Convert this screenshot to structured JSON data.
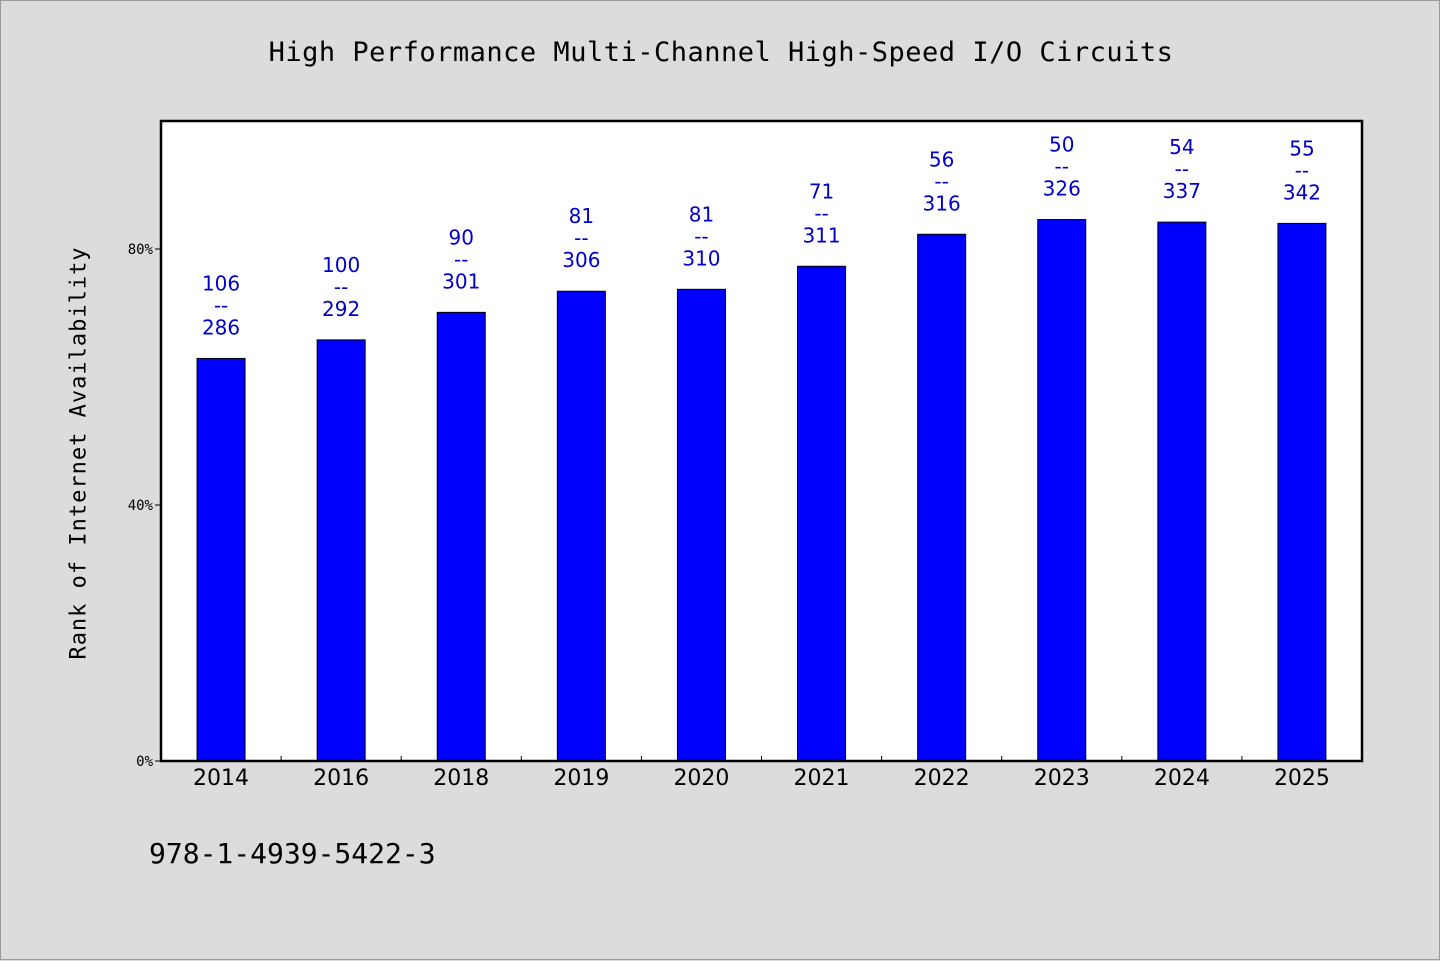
{
  "title": "High Performance Multi-Channel High-Speed I/O Circuits",
  "footer_code": "978-1-4939-5422-3",
  "colors": {
    "bar": "#0000ff",
    "label": "#0000cc",
    "plot_bg": "#ffffff",
    "page_bg": "#dcdcdc"
  },
  "chart_data": {
    "type": "bar",
    "ylabel": "Rank of Internet Availability",
    "ylim": [
      0,
      100
    ],
    "yticks": [
      {
        "value": 0,
        "label": "0%"
      },
      {
        "value": 40,
        "label": "40%"
      },
      {
        "value": 80,
        "label": "80%"
      }
    ],
    "categories": [
      "2014",
      "2016",
      "2018",
      "2019",
      "2020",
      "2021",
      "2022",
      "2023",
      "2024",
      "2025"
    ],
    "values": [
      62.9,
      65.8,
      70.1,
      73.4,
      73.7,
      77.3,
      82.3,
      84.6,
      84.2,
      84.0
    ],
    "data_labels": [
      {
        "rank": "106",
        "sep": "--",
        "total": "286"
      },
      {
        "rank": "100",
        "sep": "--",
        "total": "292"
      },
      {
        "rank": "90",
        "sep": "--",
        "total": "301"
      },
      {
        "rank": "81",
        "sep": "--",
        "total": "306"
      },
      {
        "rank": "81",
        "sep": "--",
        "total": "310"
      },
      {
        "rank": "71",
        "sep": "--",
        "total": "311"
      },
      {
        "rank": "56",
        "sep": "--",
        "total": "316"
      },
      {
        "rank": "50",
        "sep": "--",
        "total": "326"
      },
      {
        "rank": "54",
        "sep": "--",
        "total": "337"
      },
      {
        "rank": "55",
        "sep": "--",
        "total": "342"
      }
    ],
    "grid": false,
    "legend": "none"
  }
}
